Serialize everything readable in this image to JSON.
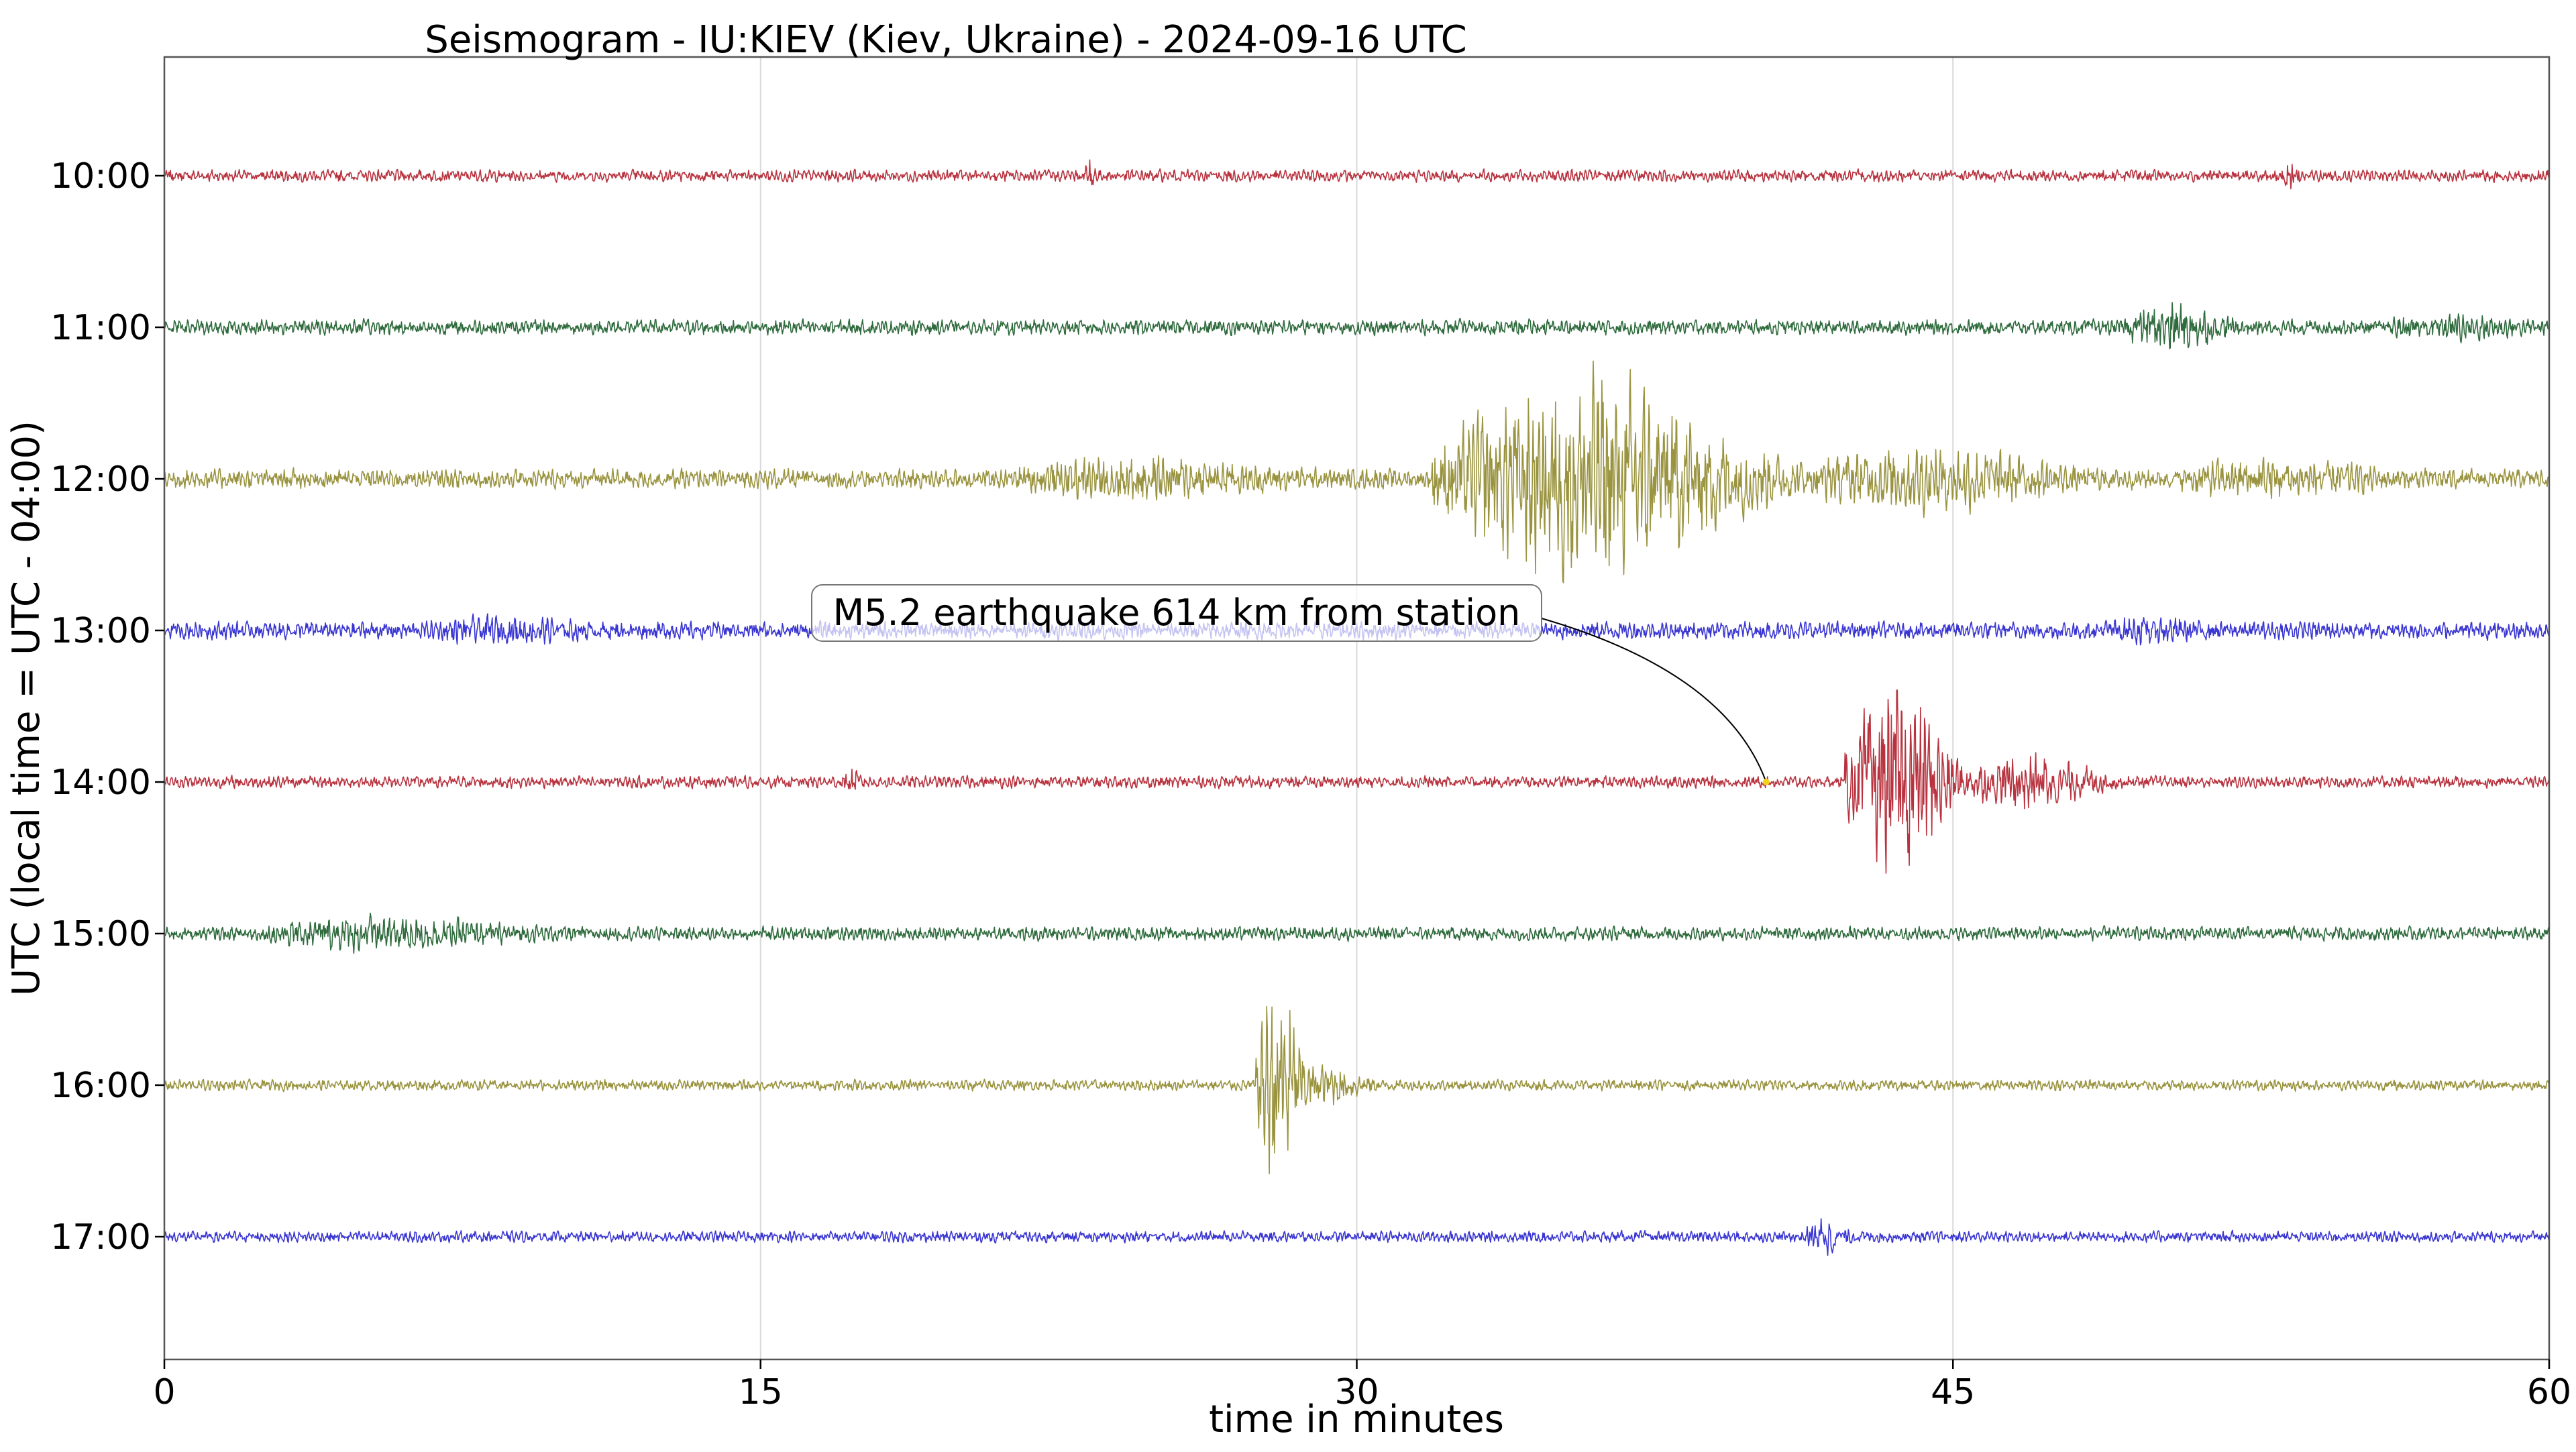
{
  "chart_data": {
    "type": "line",
    "title": "Seismogram - IU:KIEV (Kiev, Ukraine) - 2024-09-16 UTC",
    "xlabel": "time in minutes",
    "ylabel": "UTC (local time = UTC - 04:00)",
    "xlim": [
      0,
      60
    ],
    "x_ticks": [
      "0",
      "15",
      "30",
      "45",
      "60"
    ],
    "x_tick_values": [
      0,
      15,
      30,
      45,
      60
    ],
    "grid": "vertical",
    "rows": [
      {
        "label": "10:00",
        "color": "#b8333f",
        "base": 0.22,
        "events": [
          {
            "t": 23.3,
            "amp": 0.9,
            "dur": 0.15
          },
          {
            "t": 53.5,
            "amp": 0.5,
            "dur": 0.3
          }
        ]
      },
      {
        "label": "11:00",
        "color": "#2f6b3d",
        "base": 0.28,
        "events": [
          {
            "t": 50.5,
            "amp": 0.7,
            "dur": 2.0
          },
          {
            "t": 57.5,
            "amp": 0.3,
            "dur": 2.5
          }
        ]
      },
      {
        "label": "12:00",
        "color": "#9a9440",
        "base": 0.35,
        "events": [
          {
            "t": 24.5,
            "amp": 0.55,
            "dur": 5.0
          },
          {
            "t": 35.8,
            "amp": 3.5,
            "dur": 6.5
          },
          {
            "t": 44.5,
            "amp": 0.9,
            "dur": 5.0
          },
          {
            "t": 53.0,
            "amp": 0.5,
            "dur": 4.0
          }
        ]
      },
      {
        "label": "13:00",
        "color": "#3a36d3",
        "base": 0.32,
        "events": [
          {
            "t": 8.5,
            "amp": 0.25,
            "dur": 3.0
          },
          {
            "t": 50.0,
            "amp": 0.25,
            "dur": 2.0
          }
        ]
      },
      {
        "label": "14:00",
        "color": "#b8333f",
        "base": 0.22,
        "events": [
          {
            "t": 43.6,
            "amp": 3.5,
            "dur": 2.2
          },
          {
            "t": 47.0,
            "amp": 0.9,
            "dur": 2.5
          },
          {
            "t": 17.3,
            "amp": 0.35,
            "dur": 0.3
          }
        ]
      },
      {
        "label": "15:00",
        "color": "#2f6b3d",
        "base": 0.25,
        "events": [
          {
            "t": 5.5,
            "amp": 0.45,
            "dur": 5.0
          }
        ]
      },
      {
        "label": "16:00",
        "color": "#9a9440",
        "base": 0.2,
        "events": [
          {
            "t": 28.0,
            "amp": 4.0,
            "dur": 0.9
          },
          {
            "t": 29.2,
            "amp": 0.6,
            "dur": 1.5
          }
        ]
      },
      {
        "label": "17:00",
        "color": "#3a36d3",
        "base": 0.2,
        "events": [
          {
            "t": 41.8,
            "amp": 0.6,
            "dur": 0.8
          }
        ]
      }
    ],
    "annotation": {
      "text": "M5.2 earthquake 614 km from station",
      "row": "14:00",
      "t": 40.3
    }
  }
}
